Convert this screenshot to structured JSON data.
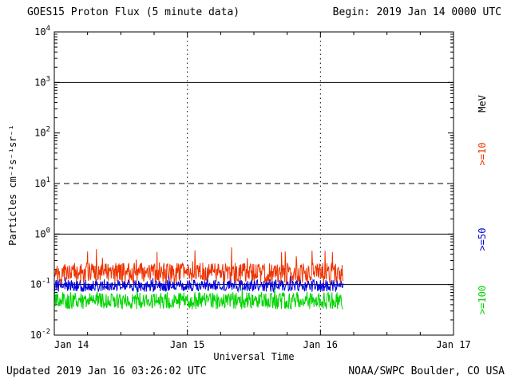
{
  "header": {
    "title": "GOES15 Proton Flux (5 minute data)",
    "begin_label": "Begin: 2019 Jan 14 0000 UTC"
  },
  "footer": {
    "updated": "Updated 2019 Jan 16 03:26:02 UTC",
    "credit": "NOAA/SWPC Boulder, CO USA"
  },
  "chart_data": {
    "type": "line",
    "title": "GOES15 Proton Flux (5 minute data)",
    "xlabel": "Universal Time",
    "ylabel": "Particles cm⁻²s⁻¹sr⁻¹",
    "x_axis": {
      "tick_labels": [
        "Jan 14",
        "Jan 15",
        "Jan 16",
        "Jan 17"
      ],
      "span_days": 3,
      "minor_tick_hours": 6
    },
    "y_axis": {
      "scale": "log10",
      "log_min": -2,
      "log_max": 4,
      "major_tick_exponents": [
        4,
        3,
        2,
        1,
        0,
        -1,
        -2
      ]
    },
    "gridlines": {
      "horizontal": [
        {
          "value": 1000,
          "style": "solid"
        },
        {
          "value": 10,
          "style": "dashed"
        },
        {
          "value": 1,
          "style": "solid"
        },
        {
          "value": 0.1,
          "style": "solid"
        }
      ],
      "vertical_dotted_days": [
        1,
        2
      ]
    },
    "unit_label": "MeV",
    "data_end_day": 2.17,
    "points_per_series": 625,
    "series": [
      {
        "name": "ge100",
        "label": ">=100",
        "color": "#00d400",
        "approx_flux": 0.05,
        "flux_range": [
          0.025,
          0.09
        ],
        "base": 0.048,
        "noise_dex": 0.17,
        "spike_prob": 0.03,
        "spike_dex": 0.18,
        "seed": 77001
      },
      {
        "name": "ge50",
        "label": ">=50",
        "color": "#0000dd",
        "approx_flux": 0.095,
        "flux_range": [
          0.06,
          0.2
        ],
        "base": 0.095,
        "noise_dex": 0.12,
        "spike_prob": 0.04,
        "spike_dex": 0.25,
        "seed": 42424
      },
      {
        "name": "ge10",
        "label": ">=10",
        "color": "#ee3300",
        "approx_flux": 0.18,
        "flux_range": [
          0.1,
          0.65
        ],
        "base": 0.17,
        "noise_dex": 0.2,
        "spike_prob": 0.06,
        "spike_dex": 0.42,
        "seed": 13579
      }
    ],
    "legend_position": "right-rotated"
  }
}
